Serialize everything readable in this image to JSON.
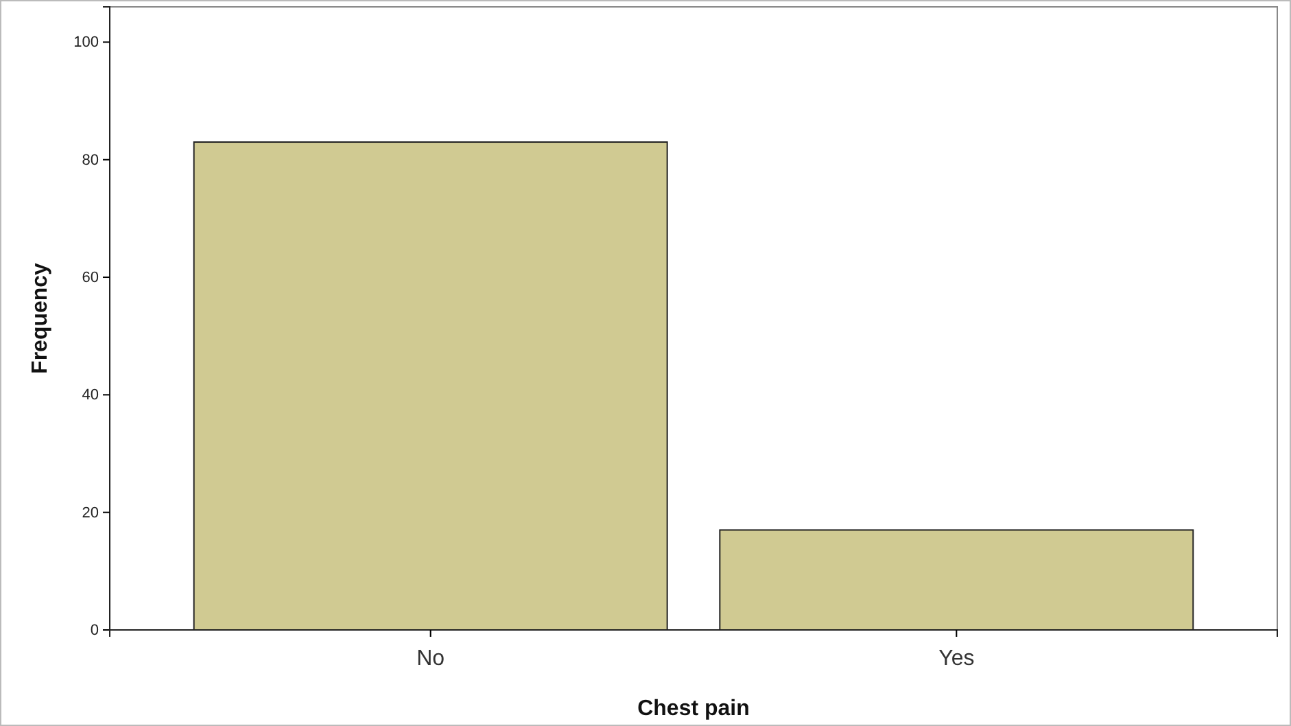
{
  "chart_data": {
    "type": "bar",
    "xlabel": "Chest pain",
    "ylabel": "Frequency",
    "categories": [
      "No",
      "Yes"
    ],
    "values": [
      83,
      17
    ],
    "color": "#d0ca92",
    "ylim": [
      0,
      106
    ],
    "yticks": [
      0,
      20,
      40,
      60,
      80,
      100
    ],
    "grid": false
  }
}
